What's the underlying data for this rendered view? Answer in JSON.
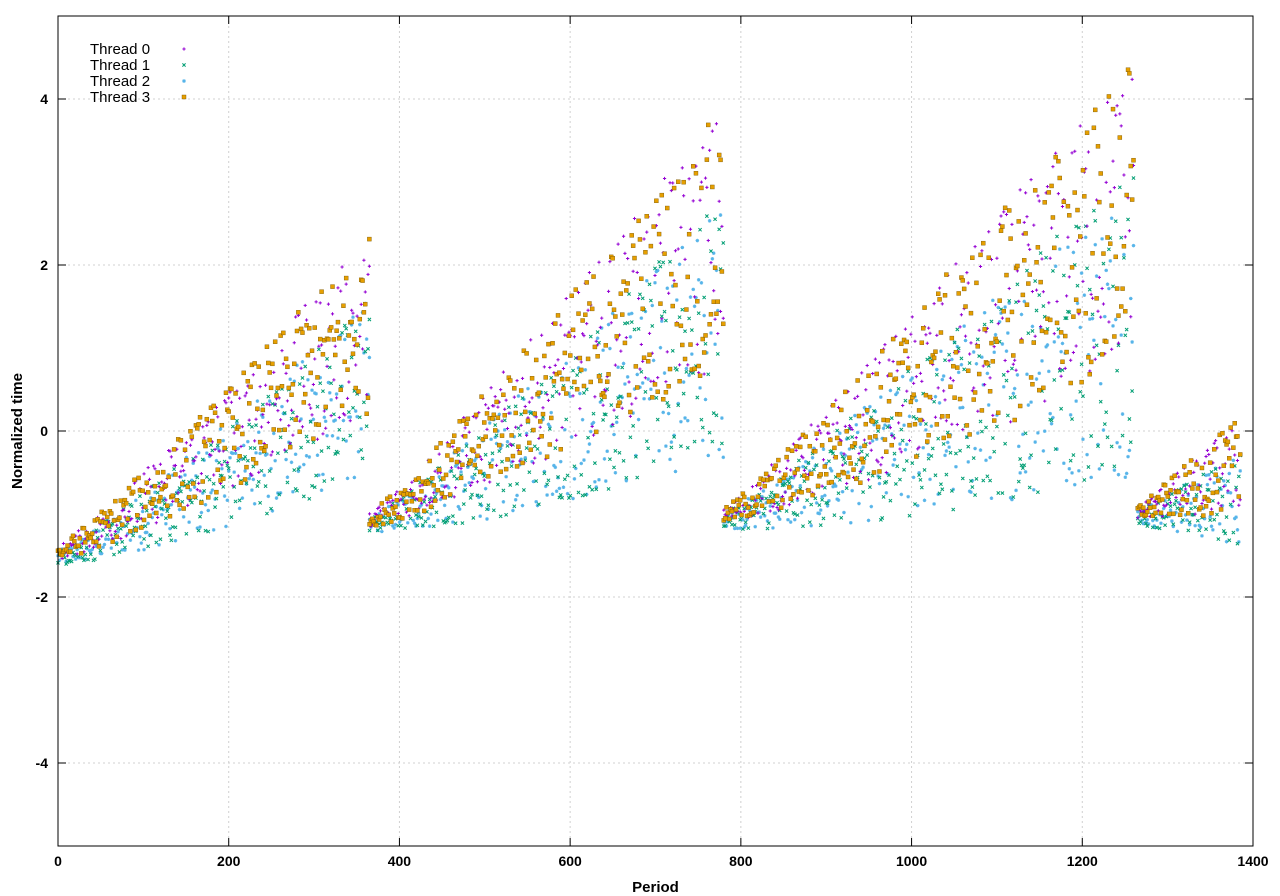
{
  "chart_data": {
    "type": "scatter",
    "title": "",
    "xlabel": "Period",
    "ylabel": "Normalized time",
    "xlim": [
      0,
      1400
    ],
    "ylim": [
      -5,
      5
    ],
    "x_ticks": [
      0,
      200,
      400,
      600,
      800,
      1000,
      1200,
      1400
    ],
    "y_ticks": [
      -4,
      -2,
      0,
      2,
      4
    ],
    "grid": true,
    "legend_position": "top-left",
    "series": [
      {
        "name": "Thread 0",
        "color": "#9400d3",
        "marker": "plus"
      },
      {
        "name": "Thread 1",
        "color": "#009e73",
        "marker": "x"
      },
      {
        "name": "Thread 2",
        "color": "#56b4e9",
        "marker": "star"
      },
      {
        "name": "Thread 3",
        "color": "#e69f00",
        "marker": "square"
      }
    ],
    "trend": {
      "description_segments": [
        {
          "x_start": 0,
          "x_end": 365,
          "y_start": -1.5,
          "y_end_mean": 0.9,
          "spread_end": 1.0
        },
        {
          "x_start": 365,
          "x_end": 780,
          "y_start": -1.1,
          "y_end_mean": 1.8,
          "spread_end": 1.5
        },
        {
          "x_start": 780,
          "x_end": 1260,
          "y_start": -1.05,
          "y_end_mean": 2.0,
          "spread_end": 1.8
        },
        {
          "x_start": 1265,
          "x_end": 1385,
          "y_start": -1.0,
          "y_end_mean": -0.6,
          "spread_end": 0.5
        }
      ]
    }
  }
}
